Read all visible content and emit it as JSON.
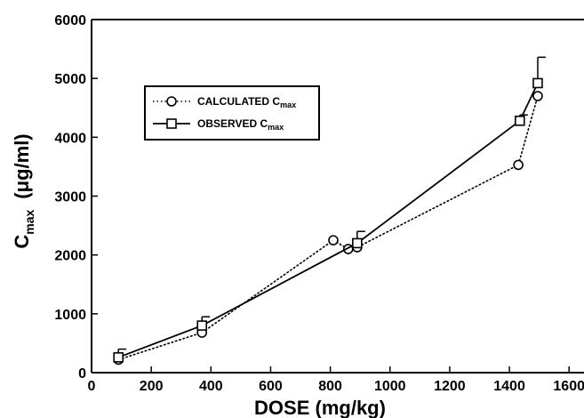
{
  "chart_data": {
    "type": "line",
    "xlabel": "DOSE (mg/kg)",
    "ylabel_main": "C",
    "ylabel_sub": "max",
    "ylabel_rest": "(μg/ml)",
    "xlim": [
      0,
      1650
    ],
    "ylim": [
      0,
      6000
    ],
    "x_ticks": [
      0,
      200,
      400,
      600,
      800,
      1000,
      1200,
      1400,
      1600
    ],
    "y_ticks": [
      0,
      1000,
      2000,
      3000,
      4000,
      5000,
      6000
    ],
    "grid": false,
    "legend_position": "upper-left",
    "series": [
      {
        "name_main": "CALCULATED C",
        "name_sub": "max",
        "line_style": "dotted",
        "marker": "circle",
        "x": [
          90,
          370,
          810,
          860,
          890,
          1430,
          1495
        ],
        "y": [
          220,
          680,
          2250,
          2100,
          2130,
          3530,
          4700
        ],
        "error": [
          0,
          0,
          0,
          0,
          0,
          0,
          0
        ]
      },
      {
        "name_main": "OBSERVED C",
        "name_sub": "max",
        "line_style": "solid",
        "marker": "square",
        "x": [
          90,
          370,
          890,
          1435,
          1495
        ],
        "y": [
          260,
          800,
          2200,
          4280,
          4920
        ],
        "error": [
          140,
          150,
          200,
          100,
          440
        ]
      }
    ]
  }
}
